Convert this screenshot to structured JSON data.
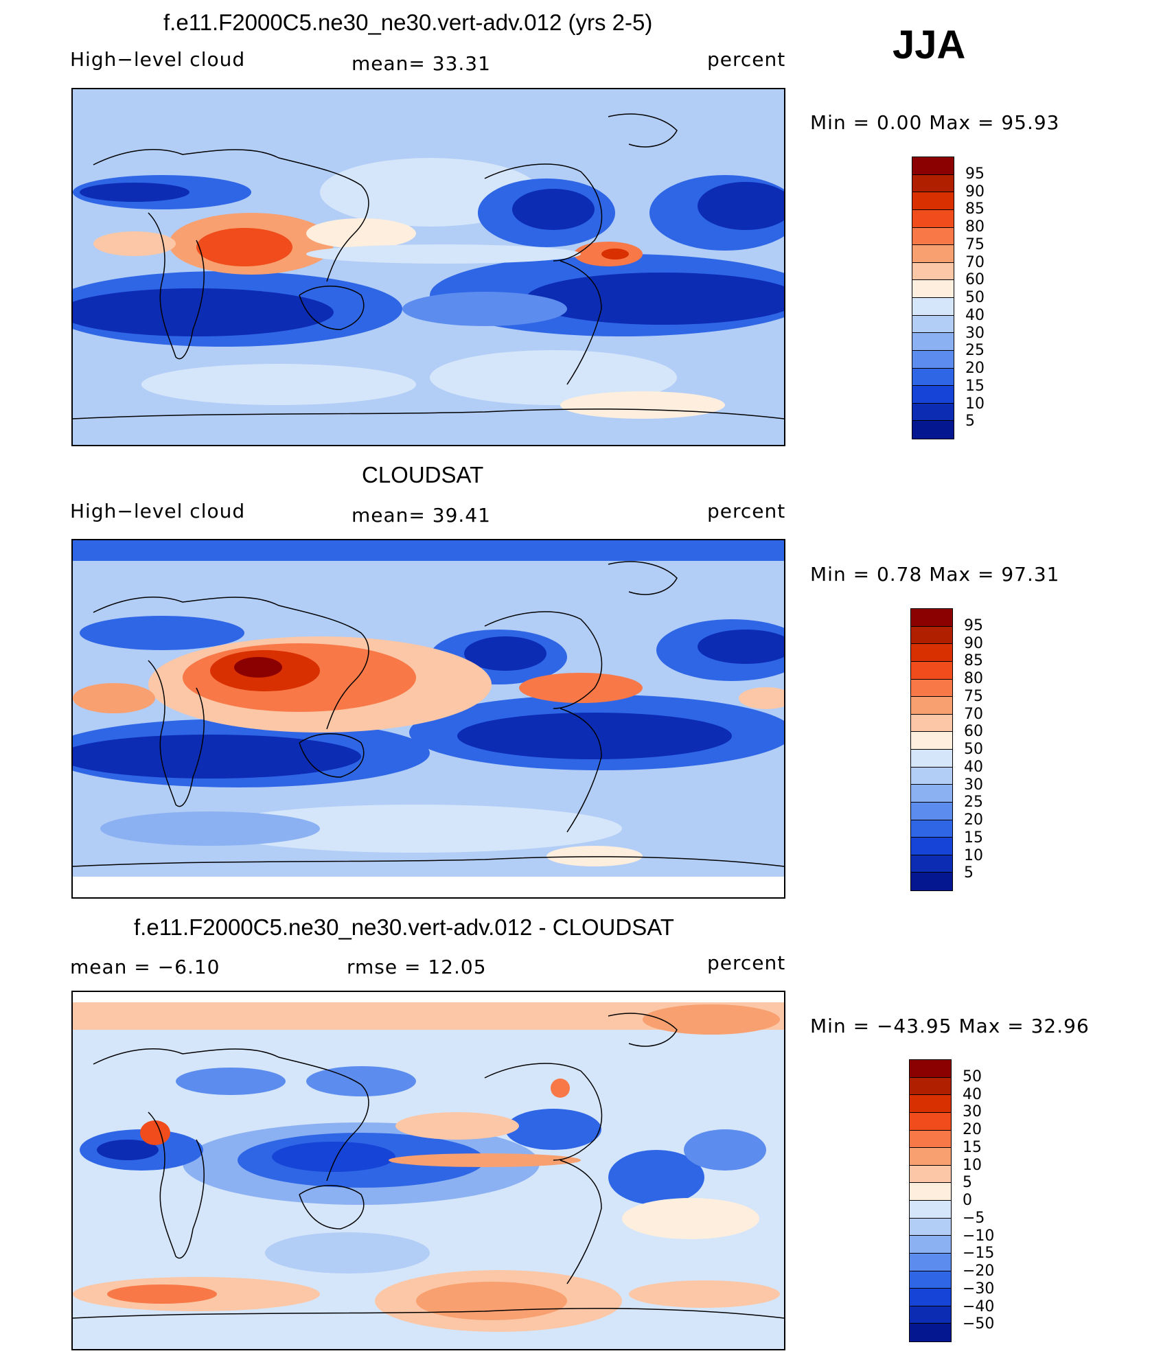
{
  "season": "JJA",
  "panels": [
    {
      "title": "f.e11.F2000C5.ne30_ne30.vert-adv.012 (yrs 2-5)",
      "left_label": "High−level cloud",
      "center_label": "mean=   33.31",
      "right_label": "percent",
      "minmax": "Min  =     0.00  Max  =    95.93",
      "colorbar_labels": [
        "95",
        "90",
        "85",
        "80",
        "75",
        "70",
        "60",
        "50",
        "40",
        "30",
        "25",
        "20",
        "15",
        "10",
        "5"
      ],
      "colors": [
        "#8b0000",
        "#b02000",
        "#d83000",
        "#f04c1c",
        "#f87848",
        "#f8a070",
        "#fbc7a6",
        "#fdeedd",
        "#d5e6fa",
        "#b2cdf6",
        "#8cb1f2",
        "#5c8cee",
        "#2f66e6",
        "#1644d6",
        "#0c2cb4",
        "#051790"
      ]
    },
    {
      "title": "CLOUDSAT",
      "left_label": "High−level cloud",
      "center_label": "mean=   39.41",
      "right_label": "percent",
      "minmax": "Min  =     0.78  Max  =    97.31",
      "colorbar_labels": [
        "95",
        "90",
        "85",
        "80",
        "75",
        "70",
        "60",
        "50",
        "40",
        "30",
        "25",
        "20",
        "15",
        "10",
        "5"
      ],
      "colors": [
        "#8b0000",
        "#b02000",
        "#d83000",
        "#f04c1c",
        "#f87848",
        "#f8a070",
        "#fbc7a6",
        "#fdeedd",
        "#d5e6fa",
        "#b2cdf6",
        "#8cb1f2",
        "#5c8cee",
        "#2f66e6",
        "#1644d6",
        "#0c2cb4",
        "#051790"
      ]
    },
    {
      "title": "f.e11.F2000C5.ne30_ne30.vert-adv.012 - CLOUDSAT",
      "left_label": "mean  =    −6.10",
      "center_label": "rmse  =    12.05",
      "right_label": "percent",
      "minmax": "Min  =  −43.95  Max  =    32.96",
      "colorbar_labels": [
        "50",
        "40",
        "30",
        "20",
        "15",
        "10",
        "5",
        "0",
        "−5",
        "−10",
        "−15",
        "−20",
        "−30",
        "−40",
        "−50"
      ],
      "colors": [
        "#8b0000",
        "#b02000",
        "#d83000",
        "#f04c1c",
        "#f87848",
        "#f8a070",
        "#fbc7a6",
        "#fdeedd",
        "#d5e6fa",
        "#b2cdf6",
        "#8cb1f2",
        "#5c8cee",
        "#2f66e6",
        "#1644d6",
        "#0c2cb4",
        "#051790"
      ]
    }
  ],
  "chart_data": [
    {
      "type": "heatmap",
      "title": "f.e11.F2000C5.ne30_ne30.vert-adv.012 (yrs 2-5)",
      "variable": "High−level cloud",
      "units": "percent",
      "season": "JJA",
      "mean": 33.31,
      "min": 0.0,
      "max": 95.93,
      "levels": [
        5,
        10,
        15,
        20,
        25,
        30,
        40,
        50,
        60,
        70,
        75,
        80,
        85,
        90,
        95
      ]
    },
    {
      "type": "heatmap",
      "title": "CLOUDSAT",
      "variable": "High−level cloud",
      "units": "percent",
      "season": "JJA",
      "mean": 39.41,
      "min": 0.78,
      "max": 97.31,
      "levels": [
        5,
        10,
        15,
        20,
        25,
        30,
        40,
        50,
        60,
        70,
        75,
        80,
        85,
        90,
        95
      ]
    },
    {
      "type": "heatmap",
      "title": "f.e11.F2000C5.ne30_ne30.vert-adv.012 - CLOUDSAT",
      "units": "percent",
      "season": "JJA",
      "mean": -6.1,
      "rmse": 12.05,
      "min": -43.95,
      "max": 32.96,
      "levels": [
        -50,
        -40,
        -30,
        -20,
        -15,
        -10,
        -5,
        0,
        5,
        10,
        15,
        20,
        30,
        40,
        50
      ]
    }
  ]
}
